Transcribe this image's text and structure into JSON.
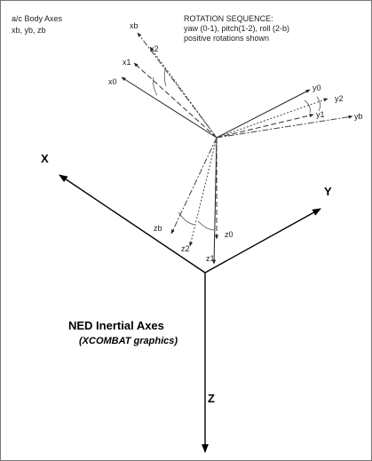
{
  "legend": {
    "body_axes_line1": "a/c Body Axes",
    "body_axes_line2": "xb, yb, zb"
  },
  "rotation": {
    "line1": "ROTATION SEQUENCE:",
    "line2": "yaw (0-1), pitch(1-2), roll (2-b)",
    "line3": "positive rotations shown"
  },
  "body_labels": {
    "xb": "xb",
    "x2": "x2",
    "x1": "x1",
    "x0": "x0",
    "y0": "y0",
    "y2": "y2",
    "y1": "y1",
    "yb": "yb",
    "zb": "zb",
    "z2": "z2",
    "z0": "z0",
    "z1": "z1"
  },
  "inertial": {
    "X": "X",
    "Y": "Y",
    "Z": "Z",
    "title": "NED Inertial Axes",
    "subtitle": "(XCOMBAT graphics)"
  }
}
